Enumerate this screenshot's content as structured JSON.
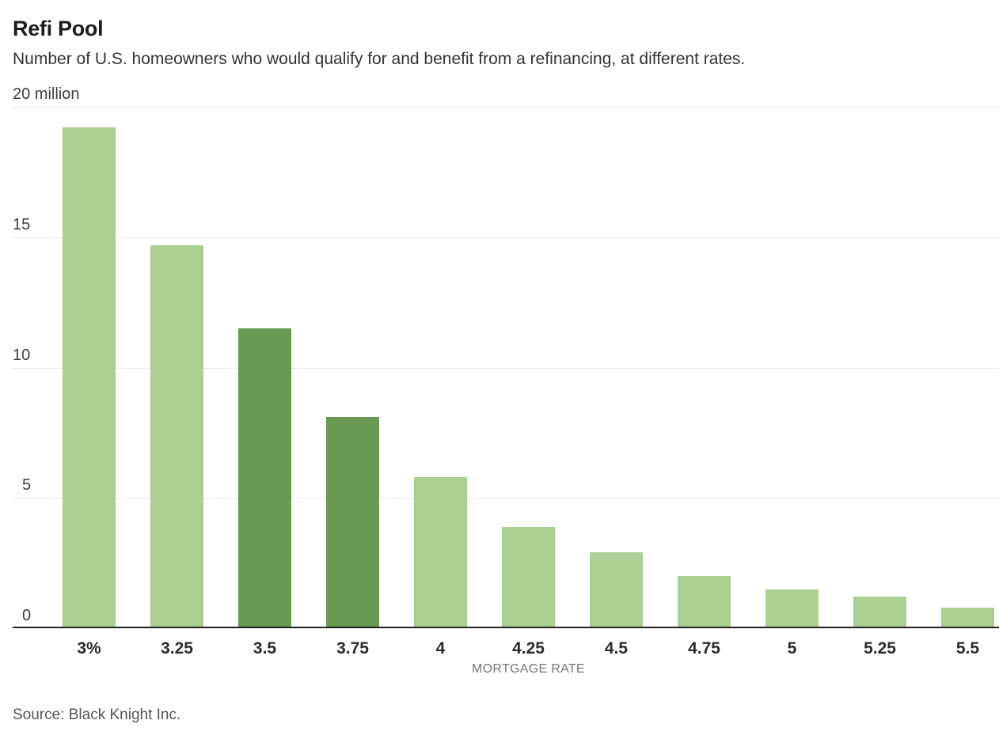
{
  "page": {
    "background": "#ffffff"
  },
  "chart_data": {
    "type": "bar",
    "title": "Refi Pool",
    "subtitle": "Number of U.S. homeowners who would qualify for and benefit from a refinancing, at different rates.",
    "categories": [
      "3%",
      "3.25",
      "3.5",
      "3.75",
      "4",
      "4.25",
      "4.5",
      "4.75",
      "5",
      "5.25",
      "5.5"
    ],
    "values": [
      19.2,
      14.7,
      11.5,
      8.1,
      5.8,
      3.9,
      2.9,
      2.0,
      1.5,
      1.2,
      0.8
    ],
    "units": "million homeowners",
    "xlabel": "MORTGAGE RATE",
    "ylim": [
      0,
      20
    ],
    "yticks": [
      0,
      5,
      10,
      15,
      20
    ],
    "ytick_labels": [
      "0",
      "5",
      "10",
      "15",
      "20 million"
    ],
    "grid": true,
    "legend": "none",
    "highlight_indices": [
      2,
      3
    ],
    "highlighted_categories": [
      "3.5",
      "3.75"
    ],
    "colors": {
      "bar": "#abce93",
      "bar_highlight": "#689b51",
      "axis_line": "#222222",
      "gridline": "#e9e9e9"
    },
    "source": "Source: Black Knight Inc."
  }
}
